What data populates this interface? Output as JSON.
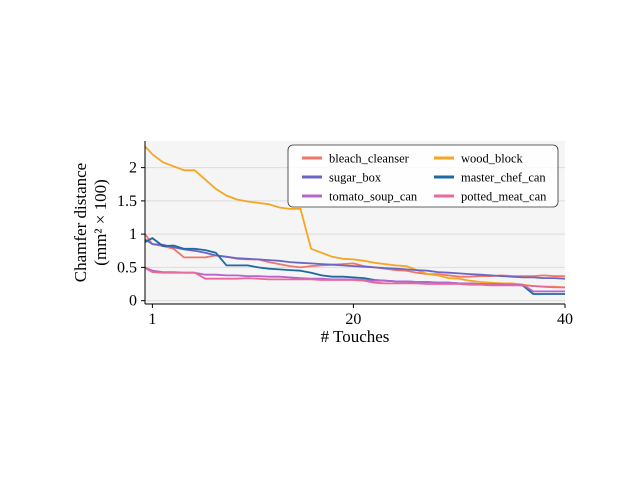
{
  "chart_data": {
    "type": "line",
    "title": "",
    "xlabel": "# Touches",
    "ylabel_line1": "Chamfer distance",
    "ylabel_line2": "(mm² × 100)",
    "xlim": [
      0.3,
      40
    ],
    "ylim": [
      -0.05,
      2.4
    ],
    "xticks": [
      1,
      20,
      40
    ],
    "yticks": [
      0,
      0.5,
      1,
      1.5,
      2
    ],
    "ytick_labels": [
      "0",
      "0.5",
      "1",
      "1.5",
      "2"
    ],
    "grid": "horizontal",
    "legend_position": "top-right",
    "background": "#f5f5f5",
    "x": [
      0.3,
      1,
      2,
      3,
      4,
      5,
      6,
      7,
      8,
      9,
      10,
      11,
      12,
      13,
      14,
      15,
      16,
      17,
      18,
      19,
      20,
      21,
      22,
      23,
      24,
      25,
      26,
      27,
      28,
      29,
      30,
      31,
      32,
      33,
      34,
      35,
      36,
      37,
      38,
      39,
      40
    ],
    "series": [
      {
        "name": "bleach_cleanser",
        "color": "#f07669",
        "values": [
          1.0,
          0.85,
          0.82,
          0.78,
          0.65,
          0.65,
          0.65,
          0.68,
          0.66,
          0.63,
          0.62,
          0.62,
          0.58,
          0.55,
          0.52,
          0.5,
          0.52,
          0.53,
          0.54,
          0.55,
          0.56,
          0.52,
          0.5,
          0.48,
          0.46,
          0.45,
          0.42,
          0.4,
          0.4,
          0.38,
          0.36,
          0.36,
          0.37,
          0.37,
          0.38,
          0.37,
          0.37,
          0.37,
          0.38,
          0.37,
          0.37
        ]
      },
      {
        "name": "wood_block",
        "color": "#f5a623",
        "values": [
          2.32,
          2.2,
          2.08,
          2.02,
          1.96,
          1.96,
          1.82,
          1.68,
          1.58,
          1.52,
          1.49,
          1.47,
          1.45,
          1.4,
          1.38,
          1.38,
          0.78,
          0.72,
          0.66,
          0.63,
          0.62,
          0.6,
          0.57,
          0.55,
          0.53,
          0.52,
          0.46,
          0.4,
          0.38,
          0.34,
          0.33,
          0.3,
          0.28,
          0.27,
          0.26,
          0.26,
          0.24,
          0.22,
          0.21,
          0.21,
          0.2
        ]
      },
      {
        "name": "sugar_box",
        "color": "#6a66c6",
        "values": [
          0.92,
          0.85,
          0.84,
          0.8,
          0.77,
          0.75,
          0.72,
          0.68,
          0.66,
          0.64,
          0.63,
          0.62,
          0.61,
          0.6,
          0.58,
          0.57,
          0.56,
          0.55,
          0.54,
          0.53,
          0.52,
          0.51,
          0.5,
          0.49,
          0.48,
          0.47,
          0.46,
          0.45,
          0.43,
          0.42,
          0.41,
          0.4,
          0.39,
          0.38,
          0.37,
          0.36,
          0.35,
          0.35,
          0.34,
          0.34,
          0.33
        ]
      },
      {
        "name": "master_chef_can",
        "color": "#1f6aa0",
        "values": [
          0.88,
          0.94,
          0.82,
          0.83,
          0.78,
          0.78,
          0.76,
          0.72,
          0.53,
          0.53,
          0.53,
          0.5,
          0.48,
          0.47,
          0.46,
          0.45,
          0.42,
          0.38,
          0.36,
          0.36,
          0.35,
          0.34,
          0.31,
          0.3,
          0.29,
          0.29,
          0.28,
          0.28,
          0.27,
          0.27,
          0.26,
          0.26,
          0.25,
          0.24,
          0.24,
          0.24,
          0.23,
          0.1,
          0.1,
          0.1,
          0.1
        ]
      },
      {
        "name": "tomato_soup_can",
        "color": "#b565cc",
        "values": [
          0.5,
          0.45,
          0.43,
          0.43,
          0.42,
          0.42,
          0.39,
          0.39,
          0.38,
          0.38,
          0.37,
          0.37,
          0.36,
          0.36,
          0.35,
          0.34,
          0.33,
          0.33,
          0.32,
          0.32,
          0.32,
          0.31,
          0.3,
          0.3,
          0.29,
          0.29,
          0.28,
          0.28,
          0.27,
          0.27,
          0.26,
          0.26,
          0.25,
          0.25,
          0.25,
          0.24,
          0.24,
          0.14,
          0.14,
          0.14,
          0.14
        ]
      },
      {
        "name": "potted_meat_can",
        "color": "#e8699a",
        "values": [
          0.49,
          0.43,
          0.42,
          0.42,
          0.42,
          0.42,
          0.33,
          0.33,
          0.33,
          0.33,
          0.34,
          0.33,
          0.32,
          0.32,
          0.32,
          0.32,
          0.32,
          0.31,
          0.31,
          0.31,
          0.31,
          0.3,
          0.27,
          0.26,
          0.26,
          0.26,
          0.26,
          0.25,
          0.25,
          0.25,
          0.25,
          0.24,
          0.24,
          0.23,
          0.23,
          0.23,
          0.23,
          0.22,
          0.21,
          0.2,
          0.2
        ]
      }
    ],
    "legend_order": [
      "bleach_cleanser",
      "sugar_box",
      "tomato_soup_can",
      "wood_block",
      "master_chef_can",
      "potted_meat_can"
    ]
  }
}
